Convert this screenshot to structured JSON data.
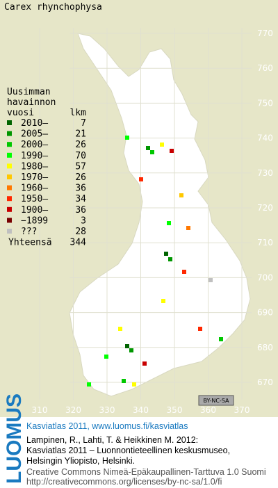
{
  "title": "Carex rhynchophysa",
  "legend": {
    "heading": [
      "Uusimman",
      "havainnon"
    ],
    "columns": [
      "vuosi",
      "lkm"
    ],
    "items": [
      {
        "label": "2010–",
        "count": 7,
        "color": "#006400"
      },
      {
        "label": "2005–",
        "count": 21,
        "color": "#009600"
      },
      {
        "label": "2000–",
        "count": 26,
        "color": "#00c800"
      },
      {
        "label": "1990–",
        "count": 70,
        "color": "#00ff00"
      },
      {
        "label": "1980–",
        "count": 57,
        "color": "#ffff00"
      },
      {
        "label": "1970–",
        "count": 26,
        "color": "#ffc800"
      },
      {
        "label": "1960–",
        "count": 36,
        "color": "#ff7800"
      },
      {
        "label": "1950–",
        "count": 34,
        "color": "#ff2800"
      },
      {
        "label": "1900–",
        "count": 36,
        "color": "#c80000"
      },
      {
        "label": "−1899",
        "count": 3,
        "color": "#780000"
      },
      {
        "label": "???",
        "count": 28,
        "color": "#c0c0c0"
      }
    ],
    "total_label": "Yhteensä",
    "total": 344
  },
  "northing_ticks": [
    770,
    760,
    750,
    740,
    730,
    720,
    710,
    700,
    690,
    680,
    670
  ],
  "easting_ticks": [
    310,
    320,
    330,
    340,
    350,
    360,
    370
  ],
  "license_badge": "BY-NC-SA",
  "footer": {
    "logo": "LUOMUS",
    "title": "Kasviatlas 2011, www.luomus.fi/kasviatlas",
    "citation": [
      "Lampinen, R., Lahti, T. & Heikkinen M. 2012:",
      "Kasviatlas 2011 – Luonnontieteellinen keskusmuseo,",
      "Helsingin Yliopisto, Helsinki."
    ],
    "license": [
      "Creative Commons Nimeä-Epäkaupallinen-Tarttuva 1.0 Suomi",
      "http://creativecommons.org/licenses/by-nc-sa/1.0/fi"
    ]
  }
}
